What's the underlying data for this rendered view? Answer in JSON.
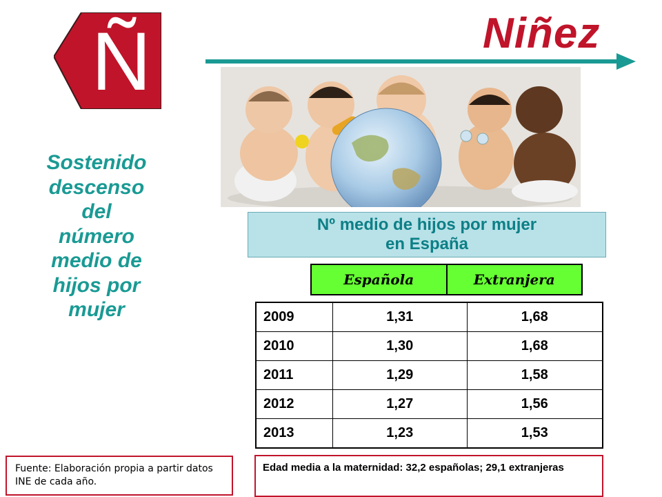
{
  "badge": {
    "letter": "Ñ",
    "color": "#c0142a"
  },
  "title": {
    "text": "Niñez",
    "color": "#c0142a",
    "arrow_color": "#1a9a94"
  },
  "photo": {
    "description_icon": "babies-with-globe-photo"
  },
  "side_text": {
    "lines": [
      "Sostenido",
      "descenso",
      "del",
      "número",
      "medio de",
      "hijos por",
      "mujer"
    ],
    "color": "#1a9a94"
  },
  "subtitle": {
    "line1": "Nº medio de hijos por mujer",
    "line2": "en España"
  },
  "table": {
    "columns": [
      "Española",
      "Extranjera"
    ],
    "header_color": "#66ff33",
    "rows": [
      {
        "year": "2009",
        "espanola": "1,31",
        "extranjera": "1,68"
      },
      {
        "year": "2010",
        "espanola": "1,30",
        "extranjera": "1,68"
      },
      {
        "year": "2011",
        "espanola": "1,29",
        "extranjera": "1,58"
      },
      {
        "year": "2012",
        "espanola": "1,27",
        "extranjera": "1,56"
      },
      {
        "year": "2013",
        "espanola": "1,23",
        "extranjera": "1,53"
      }
    ]
  },
  "source": {
    "line1": "Fuente: Elaboración propia a partir datos",
    "line2": "INE de cada año."
  },
  "footnote": {
    "text": "Edad media a la maternidad: 32,2 españolas; 29,1 extranjeras"
  }
}
